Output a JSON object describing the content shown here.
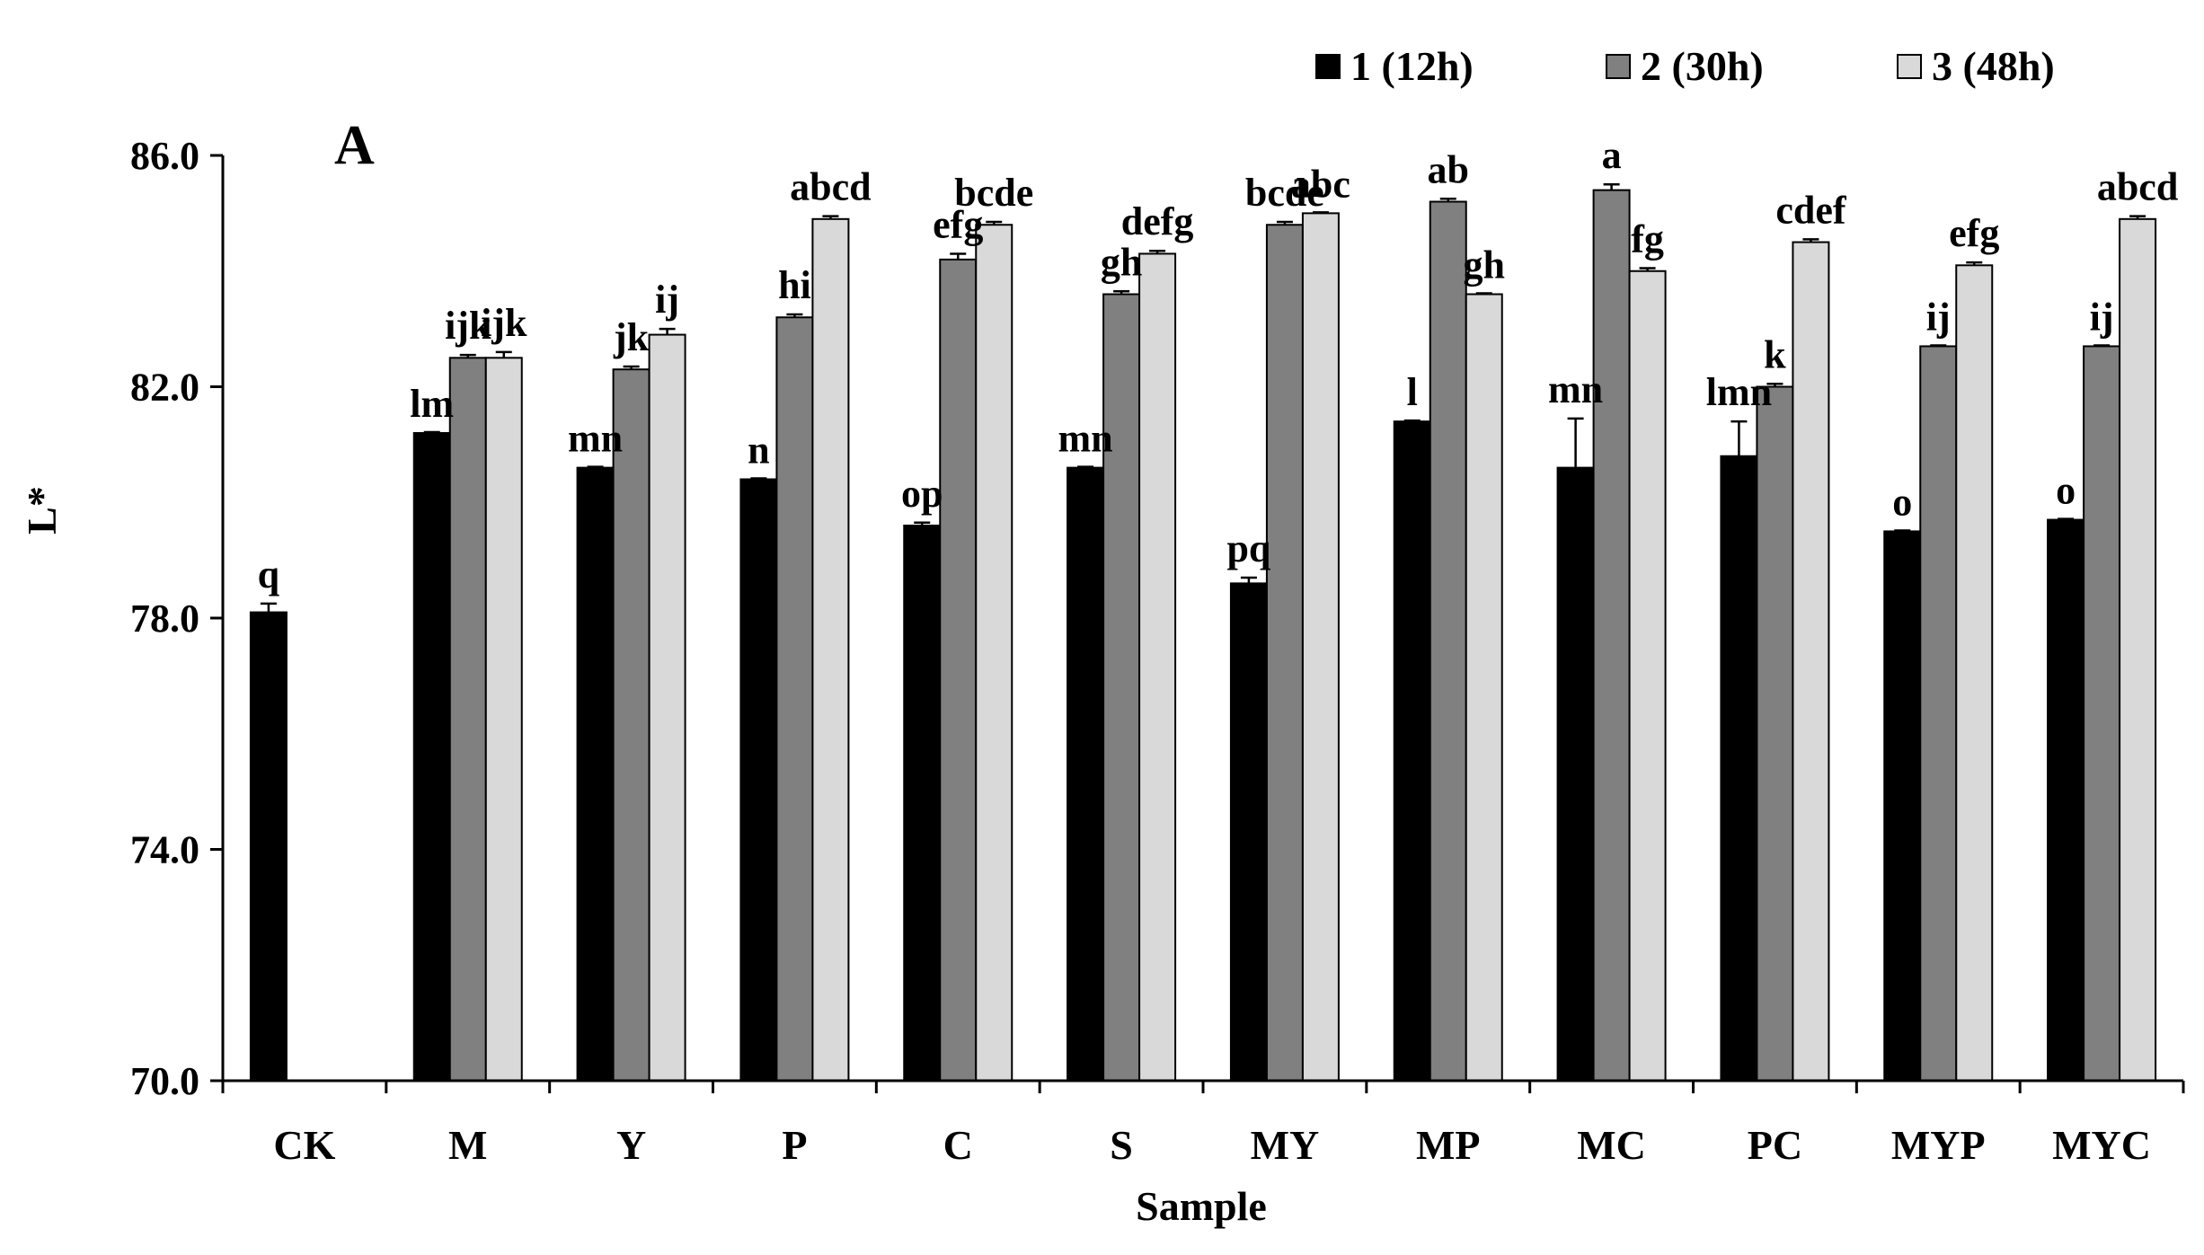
{
  "chart_data": {
    "type": "bar",
    "panel_label": "A",
    "title": "",
    "xlabel": "Sample",
    "ylabel": "L*",
    "ylim": [
      70.0,
      86.0
    ],
    "yticks": [
      "70.0",
      "74.0",
      "78.0",
      "82.0",
      "86.0"
    ],
    "ytick_values": [
      70,
      74,
      78,
      82,
      86
    ],
    "legend_position": "top-right",
    "categories": [
      "CK",
      "M",
      "Y",
      "P",
      "C",
      "S",
      "MY",
      "MP",
      "MC",
      "PC",
      "MYP",
      "MYC"
    ],
    "series": [
      {
        "name": "1 (12h)",
        "color": "#000000",
        "values": [
          78.1,
          81.2,
          80.6,
          80.4,
          79.6,
          80.6,
          78.6,
          81.4,
          80.6,
          80.8,
          79.5,
          79.7
        ],
        "errors": [
          0.15,
          0,
          0,
          0,
          0.05,
          0,
          0.1,
          0,
          0.85,
          0.6,
          0,
          0
        ],
        "labels": [
          "q",
          "lm",
          "mn",
          "n",
          "op",
          "mn",
          "pq",
          "l",
          "mn",
          "lmn",
          "o",
          "o"
        ]
      },
      {
        "name": "2 (30h)",
        "color": "#808080",
        "values": [
          null,
          82.5,
          82.3,
          83.2,
          84.2,
          83.6,
          84.8,
          85.2,
          85.4,
          82.0,
          82.7,
          82.7
        ],
        "errors": [
          0,
          0.05,
          0.05,
          0.05,
          0.1,
          0.05,
          0.05,
          0.05,
          0.1,
          0.05,
          0,
          0
        ],
        "labels": [
          "",
          "ijk",
          "jk",
          "hi",
          "efg",
          "gh",
          "bcde",
          "ab",
          "a",
          "k",
          "ij",
          "ij"
        ]
      },
      {
        "name": "3 (48h)",
        "color": "#d9d9d9",
        "values": [
          null,
          82.5,
          82.9,
          84.9,
          84.8,
          84.3,
          85.0,
          83.6,
          84.0,
          84.5,
          84.1,
          84.9
        ],
        "errors": [
          0,
          0.1,
          0.1,
          0.05,
          0.05,
          0.05,
          0,
          0,
          0.05,
          0.05,
          0.05,
          0.05
        ],
        "labels": [
          "",
          "ijk",
          "ij",
          "abcd",
          "bcde",
          "defg",
          "abc",
          "gh",
          "fg",
          "cdef",
          "efg",
          "abcd"
        ]
      }
    ]
  }
}
